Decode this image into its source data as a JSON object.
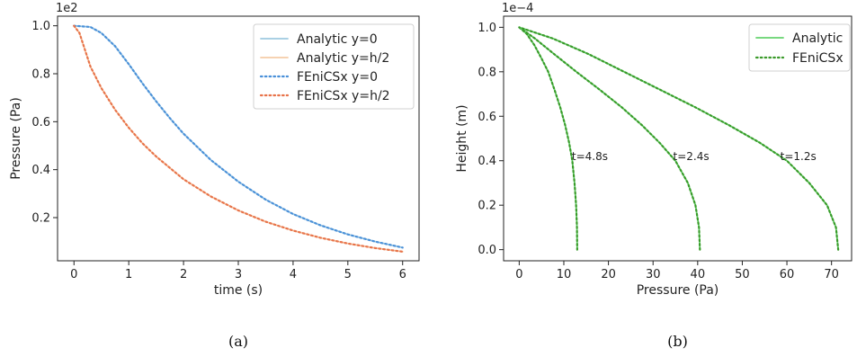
{
  "chart_data": [
    {
      "type": "line",
      "label": "(a)",
      "xlabel": "time (s)",
      "ylabel": "Pressure (Pa)",
      "offset_text": "1e2",
      "xlim": [
        -0.3,
        6.3
      ],
      "ylim": [
        0.02,
        1.04
      ],
      "xticks": [
        0,
        1,
        2,
        3,
        4,
        5,
        6
      ],
      "yticks": [
        0.2,
        0.4,
        0.6,
        0.8,
        1.0
      ],
      "grid": false,
      "legend": "top-right",
      "colors": {
        "y0_line": "#9ecae1",
        "yh2_line": "#f5cba7",
        "y0_dots": "#4a90d9",
        "yh2_dots": "#e8734a"
      },
      "series": [
        {
          "name": "Analytic y=0",
          "style": "solid",
          "x": [
            0,
            0.3,
            0.5,
            0.75,
            1,
            1.25,
            1.5,
            1.75,
            2,
            2.5,
            3,
            3.5,
            4,
            4.5,
            5,
            5.5,
            6
          ],
          "y": [
            1.0,
            0.995,
            0.97,
            0.915,
            0.84,
            0.76,
            0.685,
            0.615,
            0.55,
            0.44,
            0.35,
            0.275,
            0.215,
            0.168,
            0.13,
            0.1,
            0.075
          ]
        },
        {
          "name": "Analytic y=h/2",
          "style": "solid",
          "x": [
            0,
            0.1,
            0.2,
            0.3,
            0.5,
            0.75,
            1,
            1.25,
            1.5,
            2,
            2.5,
            3,
            3.5,
            4,
            4.5,
            5,
            5.5,
            6
          ],
          "y": [
            1.0,
            0.97,
            0.9,
            0.83,
            0.74,
            0.65,
            0.575,
            0.51,
            0.455,
            0.36,
            0.288,
            0.23,
            0.183,
            0.146,
            0.116,
            0.092,
            0.073,
            0.058
          ]
        },
        {
          "name": "FEniCSx y=0",
          "style": "dotted",
          "x": [
            0,
            0.3,
            0.5,
            0.75,
            1,
            1.25,
            1.5,
            1.75,
            2,
            2.5,
            3,
            3.5,
            4,
            4.5,
            5,
            5.5,
            6
          ],
          "y": [
            1.0,
            0.995,
            0.97,
            0.915,
            0.84,
            0.76,
            0.685,
            0.615,
            0.55,
            0.44,
            0.35,
            0.275,
            0.215,
            0.168,
            0.13,
            0.1,
            0.075
          ]
        },
        {
          "name": "FEniCSx y=h/2",
          "style": "dotted",
          "x": [
            0,
            0.1,
            0.2,
            0.3,
            0.5,
            0.75,
            1,
            1.25,
            1.5,
            2,
            2.5,
            3,
            3.5,
            4,
            4.5,
            5,
            5.5,
            6
          ],
          "y": [
            1.0,
            0.97,
            0.9,
            0.83,
            0.74,
            0.65,
            0.575,
            0.51,
            0.455,
            0.36,
            0.288,
            0.23,
            0.183,
            0.146,
            0.116,
            0.092,
            0.073,
            0.058
          ]
        }
      ]
    },
    {
      "type": "line",
      "label": "(b)",
      "xlabel": "Pressure (Pa)",
      "ylabel": "Height (m)",
      "offset_text": "1e−4",
      "xlim": [
        -3.5,
        74.5
      ],
      "ylim": [
        -0.05,
        1.05
      ],
      "xticks": [
        0,
        10,
        20,
        30,
        40,
        50,
        60,
        70
      ],
      "yticks": [
        0.0,
        0.2,
        0.4,
        0.6,
        0.8,
        1.0
      ],
      "grid": false,
      "legend": "top-right",
      "colors": {
        "analytic": "#66d36e",
        "fenicsx": "#3a9a2a"
      },
      "legend_entries": [
        {
          "name": "Analytic",
          "style": "solid"
        },
        {
          "name": "FEniCSx",
          "style": "dotted"
        }
      ],
      "annotations": [
        {
          "text": "t=4.8s",
          "x": 11.8,
          "y": 0.42
        },
        {
          "text": "t=2.4s",
          "x": 34.5,
          "y": 0.42
        },
        {
          "text": "t=1.2s",
          "x": 58.5,
          "y": 0.42
        }
      ],
      "series": [
        {
          "group": "t=4.8s",
          "x": [
            13.0,
            12.95,
            12.75,
            12.4,
            11.9,
            11.2,
            10.3,
            9.2,
            7.9,
            6.5,
            5.0,
            3.4,
            1.7,
            0
          ],
          "y": [
            0.0,
            0.1,
            0.2,
            0.3,
            0.4,
            0.48,
            0.56,
            0.64,
            0.72,
            0.8,
            0.86,
            0.92,
            0.97,
            1.0
          ]
        },
        {
          "group": "t=2.4s",
          "x": [
            40.5,
            40.3,
            39.5,
            37.8,
            35.0,
            31.5,
            27.5,
            23.0,
            18.0,
            12.8,
            7.8,
            3.5,
            0
          ],
          "y": [
            0.0,
            0.1,
            0.2,
            0.3,
            0.4,
            0.48,
            0.56,
            0.64,
            0.72,
            0.8,
            0.88,
            0.95,
            1.0
          ]
        },
        {
          "group": "t=1.2s",
          "x": [
            71.5,
            71.0,
            69.0,
            65.0,
            60.0,
            54.0,
            47.0,
            39.5,
            31.5,
            23.5,
            15.5,
            7.5,
            0
          ],
          "y": [
            0.0,
            0.1,
            0.2,
            0.3,
            0.4,
            0.48,
            0.56,
            0.64,
            0.72,
            0.8,
            0.88,
            0.95,
            1.0
          ]
        }
      ]
    }
  ]
}
